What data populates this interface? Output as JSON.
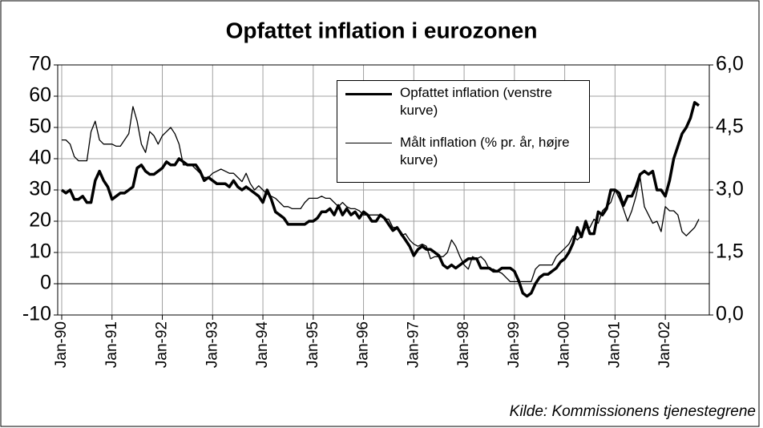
{
  "chart_data": {
    "type": "line",
    "title": "Opfattet inflation i eurozonen",
    "source": "Kilde: Kommissionens tjenestegrene",
    "categories": [
      "Jan-90",
      null,
      null,
      null,
      null,
      null,
      null,
      null,
      null,
      null,
      null,
      null,
      "Jan-91",
      null,
      null,
      null,
      null,
      null,
      null,
      null,
      null,
      null,
      null,
      null,
      "Jan-92",
      null,
      null,
      null,
      null,
      null,
      null,
      null,
      null,
      null,
      null,
      null,
      "Jan-93",
      null,
      null,
      null,
      null,
      null,
      null,
      null,
      null,
      null,
      null,
      null,
      "Jan-94",
      null,
      null,
      null,
      null,
      null,
      null,
      null,
      null,
      null,
      null,
      null,
      "Jan-95",
      null,
      null,
      null,
      null,
      null,
      null,
      null,
      null,
      null,
      null,
      null,
      "Jan-96",
      null,
      null,
      null,
      null,
      null,
      null,
      null,
      null,
      null,
      null,
      null,
      "Jan-97",
      null,
      null,
      null,
      null,
      null,
      null,
      null,
      null,
      null,
      null,
      null,
      "Jan-98",
      null,
      null,
      null,
      null,
      null,
      null,
      null,
      null,
      null,
      null,
      null,
      "Jan-99",
      null,
      null,
      null,
      null,
      null,
      null,
      null,
      null,
      null,
      null,
      null,
      "Jan-00",
      null,
      null,
      null,
      null,
      null,
      null,
      null,
      null,
      null,
      null,
      null,
      "Jan-01",
      null,
      null,
      null,
      null,
      null,
      null,
      null,
      null,
      null,
      null,
      null,
      "Jan-02",
      null,
      null,
      null,
      null,
      null,
      null,
      null,
      null
    ],
    "series": [
      {
        "name": "Opfattet inflation (venstre kurve)",
        "color": "#000000",
        "width": 3.5,
        "values": [
          30,
          29,
          30,
          27,
          27,
          28,
          26,
          26,
          33,
          36,
          33,
          31,
          27,
          28,
          29,
          29,
          30,
          31,
          37,
          38,
          36,
          35,
          35,
          36,
          37,
          39,
          38,
          38,
          40,
          39,
          38,
          38,
          38,
          36,
          33,
          34,
          33,
          32,
          32,
          32,
          31,
          33,
          31,
          30,
          31,
          30,
          29,
          28,
          26,
          30,
          27,
          23,
          22,
          21,
          19,
          19,
          19,
          19,
          19,
          20,
          20,
          21,
          23,
          23,
          24,
          22,
          25,
          22,
          24,
          22,
          23,
          21,
          23,
          22,
          20,
          20,
          22,
          21,
          19,
          17,
          18,
          16,
          14,
          12,
          9,
          11,
          12,
          11,
          11,
          10,
          9,
          6,
          5,
          6,
          5,
          6,
          7,
          8,
          8,
          8,
          5,
          5,
          5,
          4,
          4,
          5,
          5,
          5,
          4,
          1,
          -3,
          -4,
          -3,
          0,
          2,
          3,
          3,
          4,
          5,
          7,
          8,
          10,
          13,
          18,
          15,
          20,
          16,
          16,
          23,
          22,
          24,
          30,
          30,
          29,
          25,
          28,
          28,
          31,
          35,
          36,
          35,
          36,
          30,
          30,
          28,
          33,
          40,
          44,
          48,
          50,
          53,
          58,
          57
        ]
      },
      {
        "name": "Målt inflation (% pr. år, højre kurve)",
        "color": "#000000",
        "width": 1.3,
        "axis": "y2",
        "values": [
          4.2,
          4.2,
          4.1,
          3.8,
          3.7,
          3.7,
          3.7,
          4.4,
          4.65,
          4.2,
          4.1,
          4.1,
          4.1,
          4.05,
          4.05,
          4.2,
          4.35,
          5.0,
          4.65,
          4.1,
          3.9,
          4.4,
          4.3,
          4.1,
          4.3,
          4.4,
          4.5,
          4.35,
          4.1,
          3.6,
          3.6,
          3.6,
          3.5,
          3.4,
          3.3,
          3.3,
          3.4,
          3.45,
          3.5,
          3.45,
          3.4,
          3.4,
          3.3,
          3.2,
          3.4,
          3.15,
          3.0,
          3.1,
          3.0,
          2.9,
          2.85,
          2.8,
          2.7,
          2.6,
          2.6,
          2.55,
          2.55,
          2.55,
          2.7,
          2.8,
          2.8,
          2.8,
          2.85,
          2.8,
          2.8,
          2.7,
          2.6,
          2.7,
          2.6,
          2.55,
          2.55,
          2.5,
          2.4,
          2.4,
          2.4,
          2.4,
          2.4,
          2.3,
          2.3,
          2.1,
          2.1,
          1.9,
          1.95,
          1.8,
          1.7,
          1.65,
          1.7,
          1.65,
          1.35,
          1.4,
          1.4,
          1.4,
          1.5,
          1.8,
          1.65,
          1.4,
          1.2,
          1.1,
          1.4,
          1.35,
          1.4,
          1.3,
          1.1,
          1.1,
          1.05,
          1.0,
          0.9,
          0.8,
          0.8,
          0.8,
          0.8,
          0.8,
          0.8,
          1.1,
          1.2,
          1.2,
          1.2,
          1.2,
          1.4,
          1.5,
          1.6,
          1.7,
          1.9,
          1.8,
          1.9,
          2.1,
          2.1,
          2.3,
          2.2,
          2.5,
          2.6,
          2.7,
          3.0,
          2.8,
          2.55,
          2.25,
          2.5,
          2.85,
          3.3,
          2.6,
          2.4,
          2.2,
          2.25,
          2.0,
          2.6,
          2.5,
          2.5,
          2.4,
          2.0,
          1.9,
          2.0,
          2.1,
          2.3
        ]
      }
    ],
    "ylim": [
      -10,
      70
    ],
    "yticks": [
      -10,
      0,
      10,
      20,
      30,
      40,
      50,
      60,
      70
    ],
    "y2lim": [
      0,
      6
    ],
    "y2ticks": [
      {
        "value": 0,
        "label": "0,0"
      },
      {
        "value": 1.5,
        "label": "1,5"
      },
      {
        "value": 3,
        "label": "3,0"
      },
      {
        "value": 4.5,
        "label": "4,5"
      },
      {
        "value": 6,
        "label": "6,0"
      }
    ],
    "grid": true,
    "grid_color": "#a0a0a0",
    "legend": "top-right"
  }
}
